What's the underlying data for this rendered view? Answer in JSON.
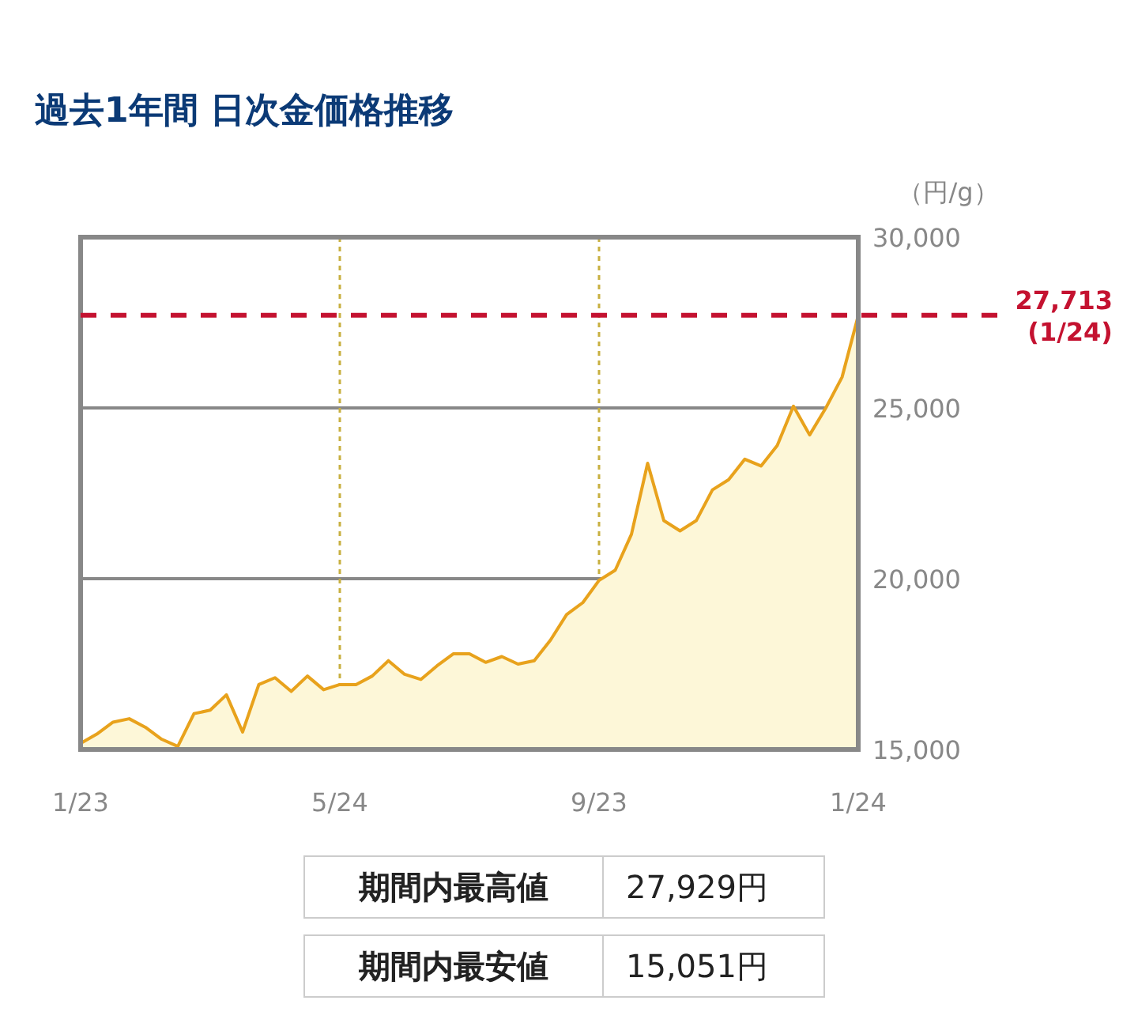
{
  "chart_data": {
    "type": "area",
    "title": "過去1年間 日次金価格推移",
    "ylabel": "（円/g）",
    "categories": [
      "1/23",
      null,
      null,
      null,
      null,
      null,
      null,
      null,
      null,
      null,
      null,
      null,
      null,
      null,
      null,
      null,
      "5/24",
      null,
      null,
      null,
      null,
      null,
      null,
      null,
      null,
      null,
      null,
      null,
      null,
      null,
      null,
      null,
      "9/23",
      null,
      null,
      null,
      null,
      null,
      null,
      null,
      null,
      null,
      null,
      null,
      null,
      null,
      null,
      null,
      "1/24"
    ],
    "series": [
      {
        "color": "#e8a21c",
        "values": [
          15180,
          15450,
          15800,
          15900,
          15650,
          15300,
          15090,
          16050,
          16150,
          16600,
          15510,
          16900,
          17100,
          16700,
          17150,
          16750,
          16900,
          16900,
          17150,
          17600,
          17200,
          17050,
          17450,
          17800,
          17800,
          17550,
          17720,
          17500,
          17600,
          18200,
          18950,
          19300,
          19950,
          20250,
          21300,
          23380,
          21700,
          21400,
          21700,
          22600,
          22900,
          23500,
          23300,
          23900,
          25050,
          24210,
          25000,
          25900,
          27700
        ]
      }
    ],
    "ylim": [
      15000,
      30000
    ],
    "yticks": [
      {
        "value": 15000,
        "label": "15,000"
      },
      {
        "value": 20000,
        "label": "20,000"
      },
      {
        "value": 25000,
        "label": "25,000"
      },
      {
        "value": 30000,
        "label": "30,000"
      }
    ],
    "grid": true,
    "ref_lines": [
      {
        "axis": "y",
        "value": 27713,
        "label": "27,713\n(1/24)",
        "color": "#c41230",
        "line_style": "dashed"
      }
    ],
    "annotations": [
      "期間内最高値",
      "27,929円",
      "期間内最安値",
      "15,051円"
    ]
  }
}
